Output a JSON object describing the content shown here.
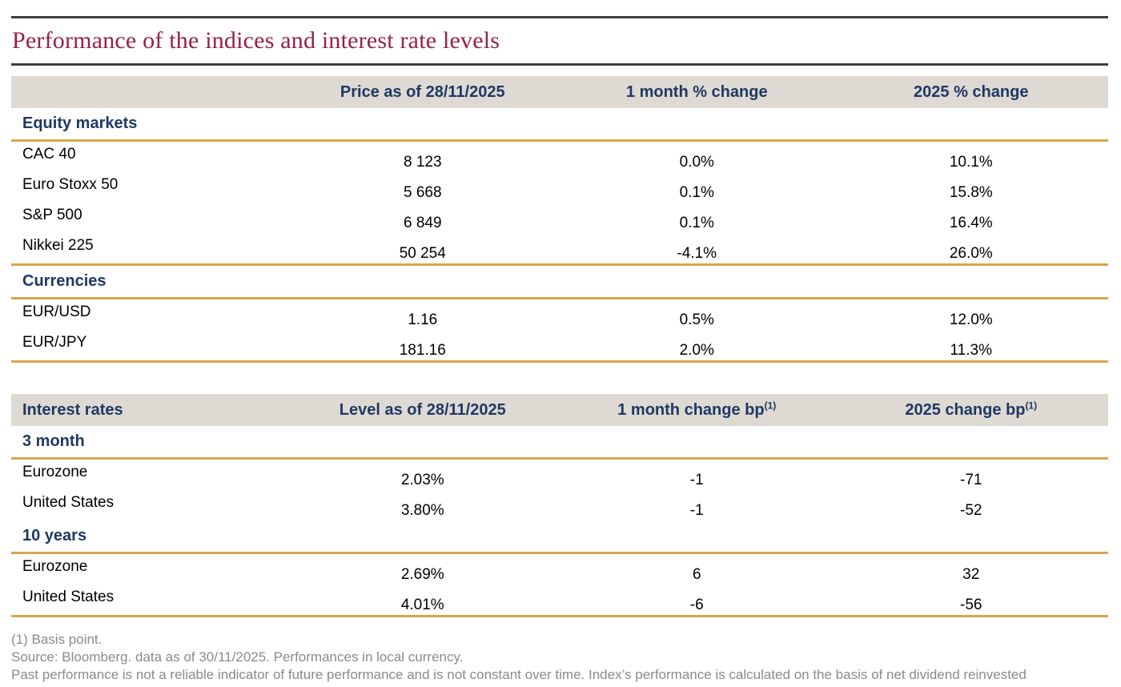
{
  "title": "Performance of the indices and interest rate levels",
  "colors": {
    "title_maroon": "#98204a",
    "navy": "#1f3864",
    "gold_rule": "#d9a54c",
    "dark_rule": "#3f3f3f",
    "header_bg": "#dedad3",
    "footnote_gray": "#8a8a8a"
  },
  "market_table": {
    "headers": {
      "col1": "Price as of 28/11/2025",
      "col2": "1 month % change",
      "col3": "2025 % change"
    },
    "sections": [
      {
        "label": "Equity markets",
        "rows": [
          {
            "label": "CAC 40",
            "price": "8 123",
            "m1": "0.0%",
            "ytd": "10.1%"
          },
          {
            "label": "Euro Stoxx 50",
            "price": "5 668",
            "m1": "0.1%",
            "ytd": "15.8%"
          },
          {
            "label": "S&P 500",
            "price": "6 849",
            "m1": "0.1%",
            "ytd": "16.4%"
          },
          {
            "label": "Nikkei 225",
            "price": "50 254",
            "m1": "-4.1%",
            "ytd": "26.0%"
          }
        ]
      },
      {
        "label": "Currencies",
        "rows": [
          {
            "label": "EUR/USD",
            "price": "1.16",
            "m1": "0.5%",
            "ytd": "12.0%"
          },
          {
            "label": "EUR/JPY",
            "price": "181.16",
            "m1": "2.0%",
            "ytd": "11.3%"
          }
        ]
      }
    ]
  },
  "rates_table": {
    "headers": {
      "col0": "Interest rates",
      "col1": "Level as of 28/11/2025",
      "col2": "1 month change bp",
      "col3": "2025 change bp"
    },
    "header_sup": "(1)",
    "sections": [
      {
        "label": "3 month",
        "rows": [
          {
            "label": "Eurozone",
            "level": "2.03%",
            "m1": "-1",
            "ytd": "-71"
          },
          {
            "label": "United States",
            "level": "3.80%",
            "m1": "-1",
            "ytd": "-52"
          }
        ]
      },
      {
        "label": "10 years",
        "rows": [
          {
            "label": "Eurozone",
            "level": "2.69%",
            "m1": "6",
            "ytd": "32"
          },
          {
            "label": "United States",
            "level": "4.01%",
            "m1": "-6",
            "ytd": "-56"
          }
        ]
      }
    ]
  },
  "footnotes": {
    "line1": "(1) Basis point.",
    "line2": "Source: Bloomberg. data as of 30/11/2025. Performances in local currency.",
    "line3": "Past performance is not a reliable indicator of future performance and is not constant over time. Index’s performance is calculated on the basis of net dividend reinvested"
  }
}
